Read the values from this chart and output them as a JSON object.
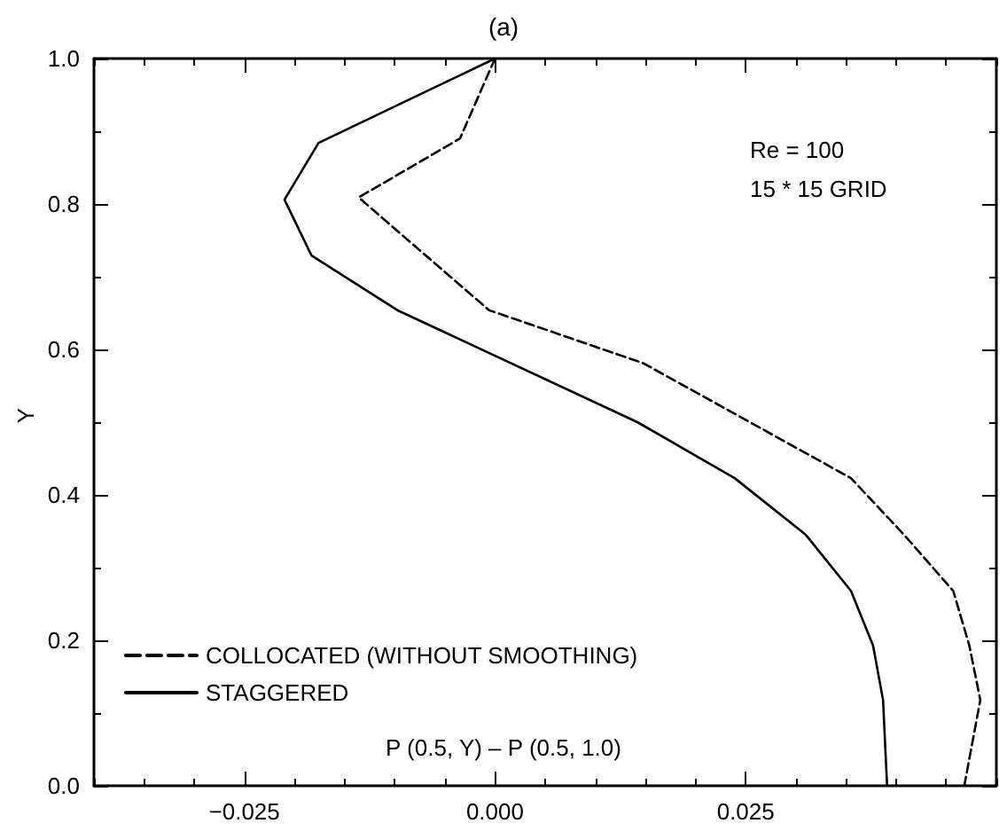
{
  "chart_data": {
    "type": "line",
    "title": "(a)",
    "xlabel": "P (0.5, Y) – P (0.5, 1.0)",
    "ylabel": "Y",
    "annotations": [
      "Re = 100",
      "15 * 15 GRID"
    ],
    "xlim": [
      -0.04,
      0.05
    ],
    "xticks": [
      {
        "value": -0.025,
        "label": "−0.025"
      },
      {
        "value": 0,
        "label": "0.000"
      },
      {
        "value": 0.025,
        "label": "0.025"
      }
    ],
    "ylim": [
      0,
      1
    ],
    "yticks": [
      {
        "value": 0,
        "label": "0.0"
      },
      {
        "value": 0.2,
        "label": "0.2"
      },
      {
        "value": 0.4,
        "label": "0.4"
      },
      {
        "value": 0.6,
        "label": "0.6"
      },
      {
        "value": 0.8,
        "label": "0.8"
      },
      {
        "value": 1,
        "label": "1.0"
      }
    ],
    "legend": "bottom left",
    "marker": "none",
    "grid": false,
    "series": [
      {
        "name": "COLLOCATED (WITHOUT SMOOTHING)",
        "color": "#000000",
        "line_style": "dashed",
        "x": [
          0,
          -0.0035,
          -0.0136,
          -0.0006,
          0.0148,
          0.0355,
          0.0408,
          0.0457,
          0.0473,
          0.0484,
          0.0468
        ],
        "values": [
          1,
          0.89,
          0.809,
          0.654,
          0.581,
          0.423,
          0.345,
          0.268,
          0.193,
          0.118,
          0
        ]
      },
      {
        "name": "STAGGERED",
        "color": "#000000",
        "line_style": "solid",
        "x": [
          0,
          -0.0176,
          -0.021,
          -0.0183,
          -0.00975,
          0.0142,
          0.0239,
          0.031,
          0.0355,
          0.0377,
          0.0387,
          0.0391
        ],
        "values": [
          1,
          0.884,
          0.806,
          0.729,
          0.654,
          0.5,
          0.423,
          0.345,
          0.268,
          0.193,
          0.118,
          0
        ]
      }
    ]
  }
}
